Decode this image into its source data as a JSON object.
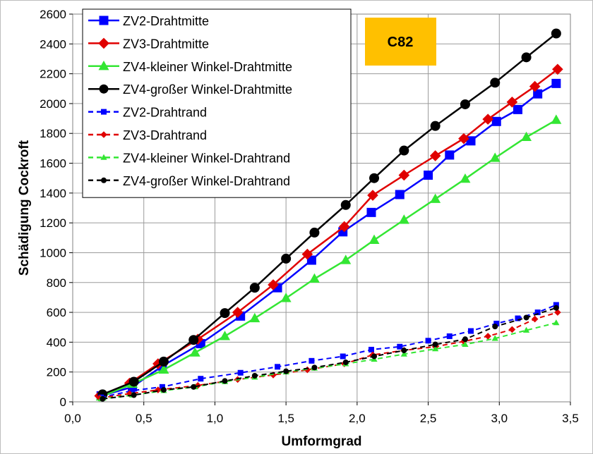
{
  "chart_data": {
    "type": "line",
    "badge": "C82",
    "badge_color": "#FFC000",
    "xlabel": "Umformgrad",
    "ylabel": "Schädigung Cockroft",
    "xlim": [
      0.0,
      3.5
    ],
    "ylim": [
      0,
      2600
    ],
    "x_ticks": [
      "0,0",
      "0,5",
      "1,0",
      "1,5",
      "2,0",
      "2,5",
      "3,0",
      "3,5"
    ],
    "y_ticks": [
      "0",
      "200",
      "400",
      "600",
      "800",
      "1000",
      "1200",
      "1400",
      "1600",
      "1800",
      "2000",
      "2200",
      "2400",
      "2600"
    ],
    "grid": true,
    "legend_position": "top-left",
    "series": [
      {
        "name": "ZV2-Drahtmitte",
        "color": "#0000FF",
        "marker": "square",
        "dash": false,
        "x": [
          0.2,
          0.42,
          0.63,
          0.9,
          1.18,
          1.44,
          1.68,
          1.9,
          2.1,
          2.3,
          2.5,
          2.65,
          2.8,
          2.98,
          3.13,
          3.27,
          3.4
        ],
        "y": [
          40,
          100,
          240,
          390,
          575,
          765,
          950,
          1140,
          1270,
          1390,
          1520,
          1655,
          1750,
          1880,
          1960,
          2065,
          2135
        ]
      },
      {
        "name": "ZV3-Drahtmitte",
        "color": "#E00000",
        "marker": "diamond",
        "dash": false,
        "x": [
          0.19,
          0.4,
          0.6,
          0.88,
          1.16,
          1.41,
          1.65,
          1.91,
          2.11,
          2.33,
          2.55,
          2.75,
          2.92,
          3.09,
          3.25,
          3.41
        ],
        "y": [
          40,
          125,
          255,
          420,
          600,
          785,
          990,
          1175,
          1385,
          1520,
          1650,
          1765,
          1895,
          2010,
          2115,
          2230
        ]
      },
      {
        "name": "ZV4-kleiner Winkel-Drahtmitte",
        "color": "#33E633",
        "marker": "triangle",
        "dash": false,
        "x": [
          0.2,
          0.42,
          0.64,
          0.86,
          1.07,
          1.28,
          1.5,
          1.7,
          1.92,
          2.12,
          2.33,
          2.55,
          2.76,
          2.97,
          3.19,
          3.4
        ],
        "y": [
          35,
          120,
          215,
          330,
          440,
          560,
          695,
          825,
          950,
          1085,
          1220,
          1360,
          1495,
          1635,
          1775,
          1890
        ]
      },
      {
        "name": "ZV4-großer Winkel-Drahtmitte",
        "color": "#000000",
        "marker": "circle",
        "dash": false,
        "x": [
          0.21,
          0.43,
          0.64,
          0.85,
          1.07,
          1.28,
          1.5,
          1.7,
          1.92,
          2.12,
          2.33,
          2.55,
          2.76,
          2.97,
          3.19,
          3.4
        ],
        "y": [
          50,
          135,
          270,
          415,
          595,
          765,
          960,
          1135,
          1320,
          1500,
          1685,
          1850,
          1995,
          2140,
          2310,
          2470
        ]
      },
      {
        "name": "ZV2-Drahtrand",
        "color": "#0000FF",
        "marker": "square",
        "dash": true,
        "x": [
          0.2,
          0.42,
          0.63,
          0.9,
          1.18,
          1.44,
          1.68,
          1.9,
          2.1,
          2.3,
          2.5,
          2.65,
          2.8,
          2.98,
          3.13,
          3.27,
          3.4
        ],
        "y": [
          30,
          75,
          100,
          155,
          195,
          235,
          275,
          305,
          350,
          370,
          410,
          440,
          475,
          525,
          560,
          600,
          650
        ]
      },
      {
        "name": "ZV3-Drahtrand",
        "color": "#E00000",
        "marker": "diamond",
        "dash": true,
        "x": [
          0.19,
          0.4,
          0.6,
          0.88,
          1.16,
          1.41,
          1.65,
          1.91,
          2.11,
          2.33,
          2.55,
          2.75,
          2.92,
          3.09,
          3.25,
          3.41
        ],
        "y": [
          25,
          55,
          80,
          110,
          150,
          180,
          215,
          255,
          315,
          345,
          370,
          405,
          440,
          485,
          555,
          600
        ]
      },
      {
        "name": "ZV4-kleiner Winkel-Drahtrand",
        "color": "#33E633",
        "marker": "triangle",
        "dash": true,
        "x": [
          0.2,
          0.42,
          0.64,
          0.86,
          1.07,
          1.28,
          1.5,
          1.7,
          1.92,
          2.12,
          2.33,
          2.55,
          2.76,
          2.97,
          3.19,
          3.4
        ],
        "y": [
          20,
          45,
          75,
          100,
          135,
          165,
          200,
          225,
          255,
          285,
          320,
          355,
          385,
          425,
          480,
          530
        ]
      },
      {
        "name": "ZV4-großer Winkel-Drahtrand",
        "color": "#000000",
        "marker": "circle",
        "dash": true,
        "x": [
          0.21,
          0.43,
          0.64,
          0.85,
          1.07,
          1.28,
          1.5,
          1.7,
          1.92,
          2.12,
          2.33,
          2.55,
          2.76,
          2.97,
          3.19,
          3.4
        ],
        "y": [
          20,
          45,
          80,
          100,
          140,
          175,
          205,
          230,
          265,
          305,
          345,
          385,
          420,
          505,
          565,
          630
        ]
      }
    ]
  }
}
